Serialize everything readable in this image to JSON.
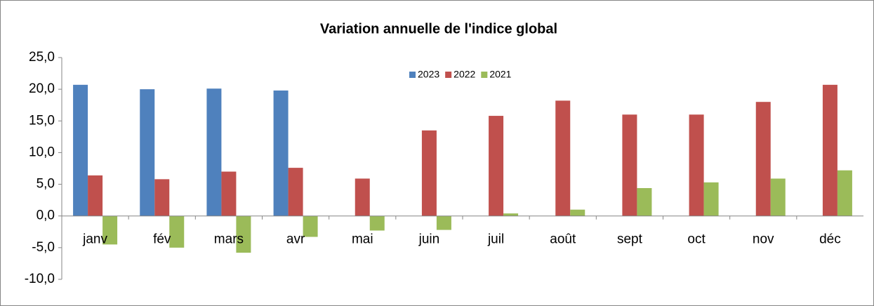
{
  "chart_data": {
    "type": "bar",
    "title": "Variation annuelle de l'indice global",
    "categories": [
      "janv",
      "fév",
      "mars",
      "avr",
      "mai",
      "juin",
      "juil",
      "août",
      "sept",
      "oct",
      "nov",
      "déc"
    ],
    "series": [
      {
        "name": "2023",
        "color": "#4f81bd",
        "values": [
          20.7,
          20.0,
          20.1,
          19.8,
          null,
          null,
          null,
          null,
          null,
          null,
          null,
          null
        ]
      },
      {
        "name": "2022",
        "color": "#c0504d",
        "values": [
          6.4,
          5.8,
          7.0,
          7.6,
          5.9,
          13.5,
          15.8,
          18.2,
          16.0,
          16.0,
          18.0,
          20.7
        ]
      },
      {
        "name": "2021",
        "color": "#9bbb59",
        "values": [
          -4.5,
          -5.0,
          -5.8,
          -3.3,
          -2.3,
          -2.2,
          0.4,
          1.0,
          4.4,
          5.3,
          5.9,
          7.2
        ]
      }
    ],
    "ylim": [
      -10,
      25
    ],
    "yticks": [
      {
        "value": -10,
        "label": "-10,0"
      },
      {
        "value": -5,
        "label": "-5,0"
      },
      {
        "value": 0,
        "label": "0,0"
      },
      {
        "value": 5,
        "label": "5,0"
      },
      {
        "value": 10,
        "label": "10,0"
      },
      {
        "value": 15,
        "label": "15,0"
      },
      {
        "value": 20,
        "label": "20,0"
      },
      {
        "value": 25,
        "label": "25,0"
      }
    ],
    "grid": false,
    "legend": "top"
  }
}
